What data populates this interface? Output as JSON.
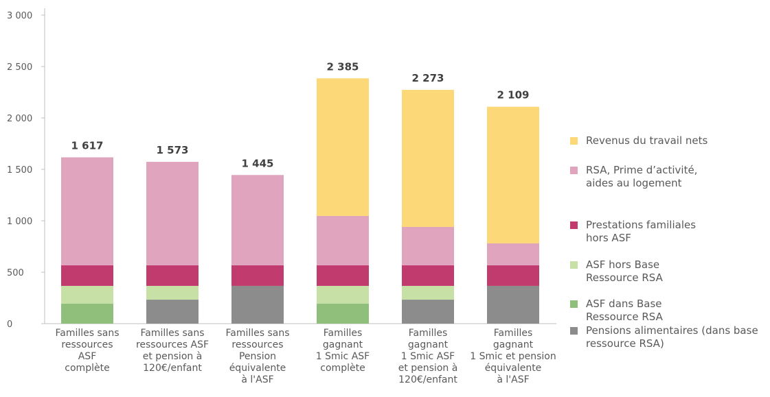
{
  "chart_data": {
    "type": "stacked_bar",
    "categories": [
      [
        "Familles sans",
        "ressources",
        "ASF",
        "complète"
      ],
      [
        "Familles sans",
        "ressources ASF",
        "et pension à",
        "120€/enfant"
      ],
      [
        "Familles sans",
        "ressources",
        "Pension",
        "équivalente",
        "à l'ASF"
      ],
      [
        "Familles",
        "gagnant",
        "1 Smic ASF",
        "complète"
      ],
      [
        "Familles",
        "gagnant",
        "1 Smic ASF",
        "et pension à",
        "120€/enfant"
      ],
      [
        "Familles",
        "gagnant",
        "1 Smic et pension",
        "équivalente",
        "à l'ASF"
      ]
    ],
    "series": [
      {
        "name": "Pensions alimentaires (dans base ressource RSA)",
        "color": "#8c8c8c",
        "values": [
          null,
          233,
          367,
          null,
          233,
          367
        ]
      },
      {
        "name": "ASF dans Base Ressource RSA",
        "color": "#8fbf7a",
        "values": [
          195,
          null,
          null,
          195,
          null,
          null
        ]
      },
      {
        "name": "ASF hors Base Ressource RSA",
        "color": "#c6e0a6",
        "values": [
          172,
          134,
          null,
          172,
          134,
          null
        ]
      },
      {
        "name": "Prestations familiales hors ASF",
        "color": "#c23b6e",
        "values": [
          200,
          200,
          200,
          200,
          200,
          200
        ]
      },
      {
        "name": "RSA, Prime d’activité, aides au logement",
        "color": "#e0a4bf",
        "values": [
          1050,
          1006,
          878,
          480,
          373,
          213
        ]
      },
      {
        "name": "Revenus du travail nets",
        "color": "#fdd878",
        "values": [
          null,
          null,
          null,
          1338,
          1333,
          1329
        ]
      }
    ],
    "totals": [
      1617,
      1573,
      1445,
      2385,
      2273,
      2109
    ],
    "total_labels": [
      "1 617",
      "1 573",
      "1 445",
      "2 385",
      "2 273",
      "2 109"
    ],
    "ylim": [
      0,
      3000
    ],
    "yticks": [
      0,
      500,
      {
        "value": 1000,
        "label": "1 000"
      },
      {
        "value": 1500,
        "label": "1 500"
      },
      {
        "value": 2000,
        "label": "2 000"
      },
      {
        "value": 2500,
        "label": "2 500"
      },
      {
        "value": 3000,
        "label": "3 000"
      }
    ],
    "legend": "right"
  }
}
